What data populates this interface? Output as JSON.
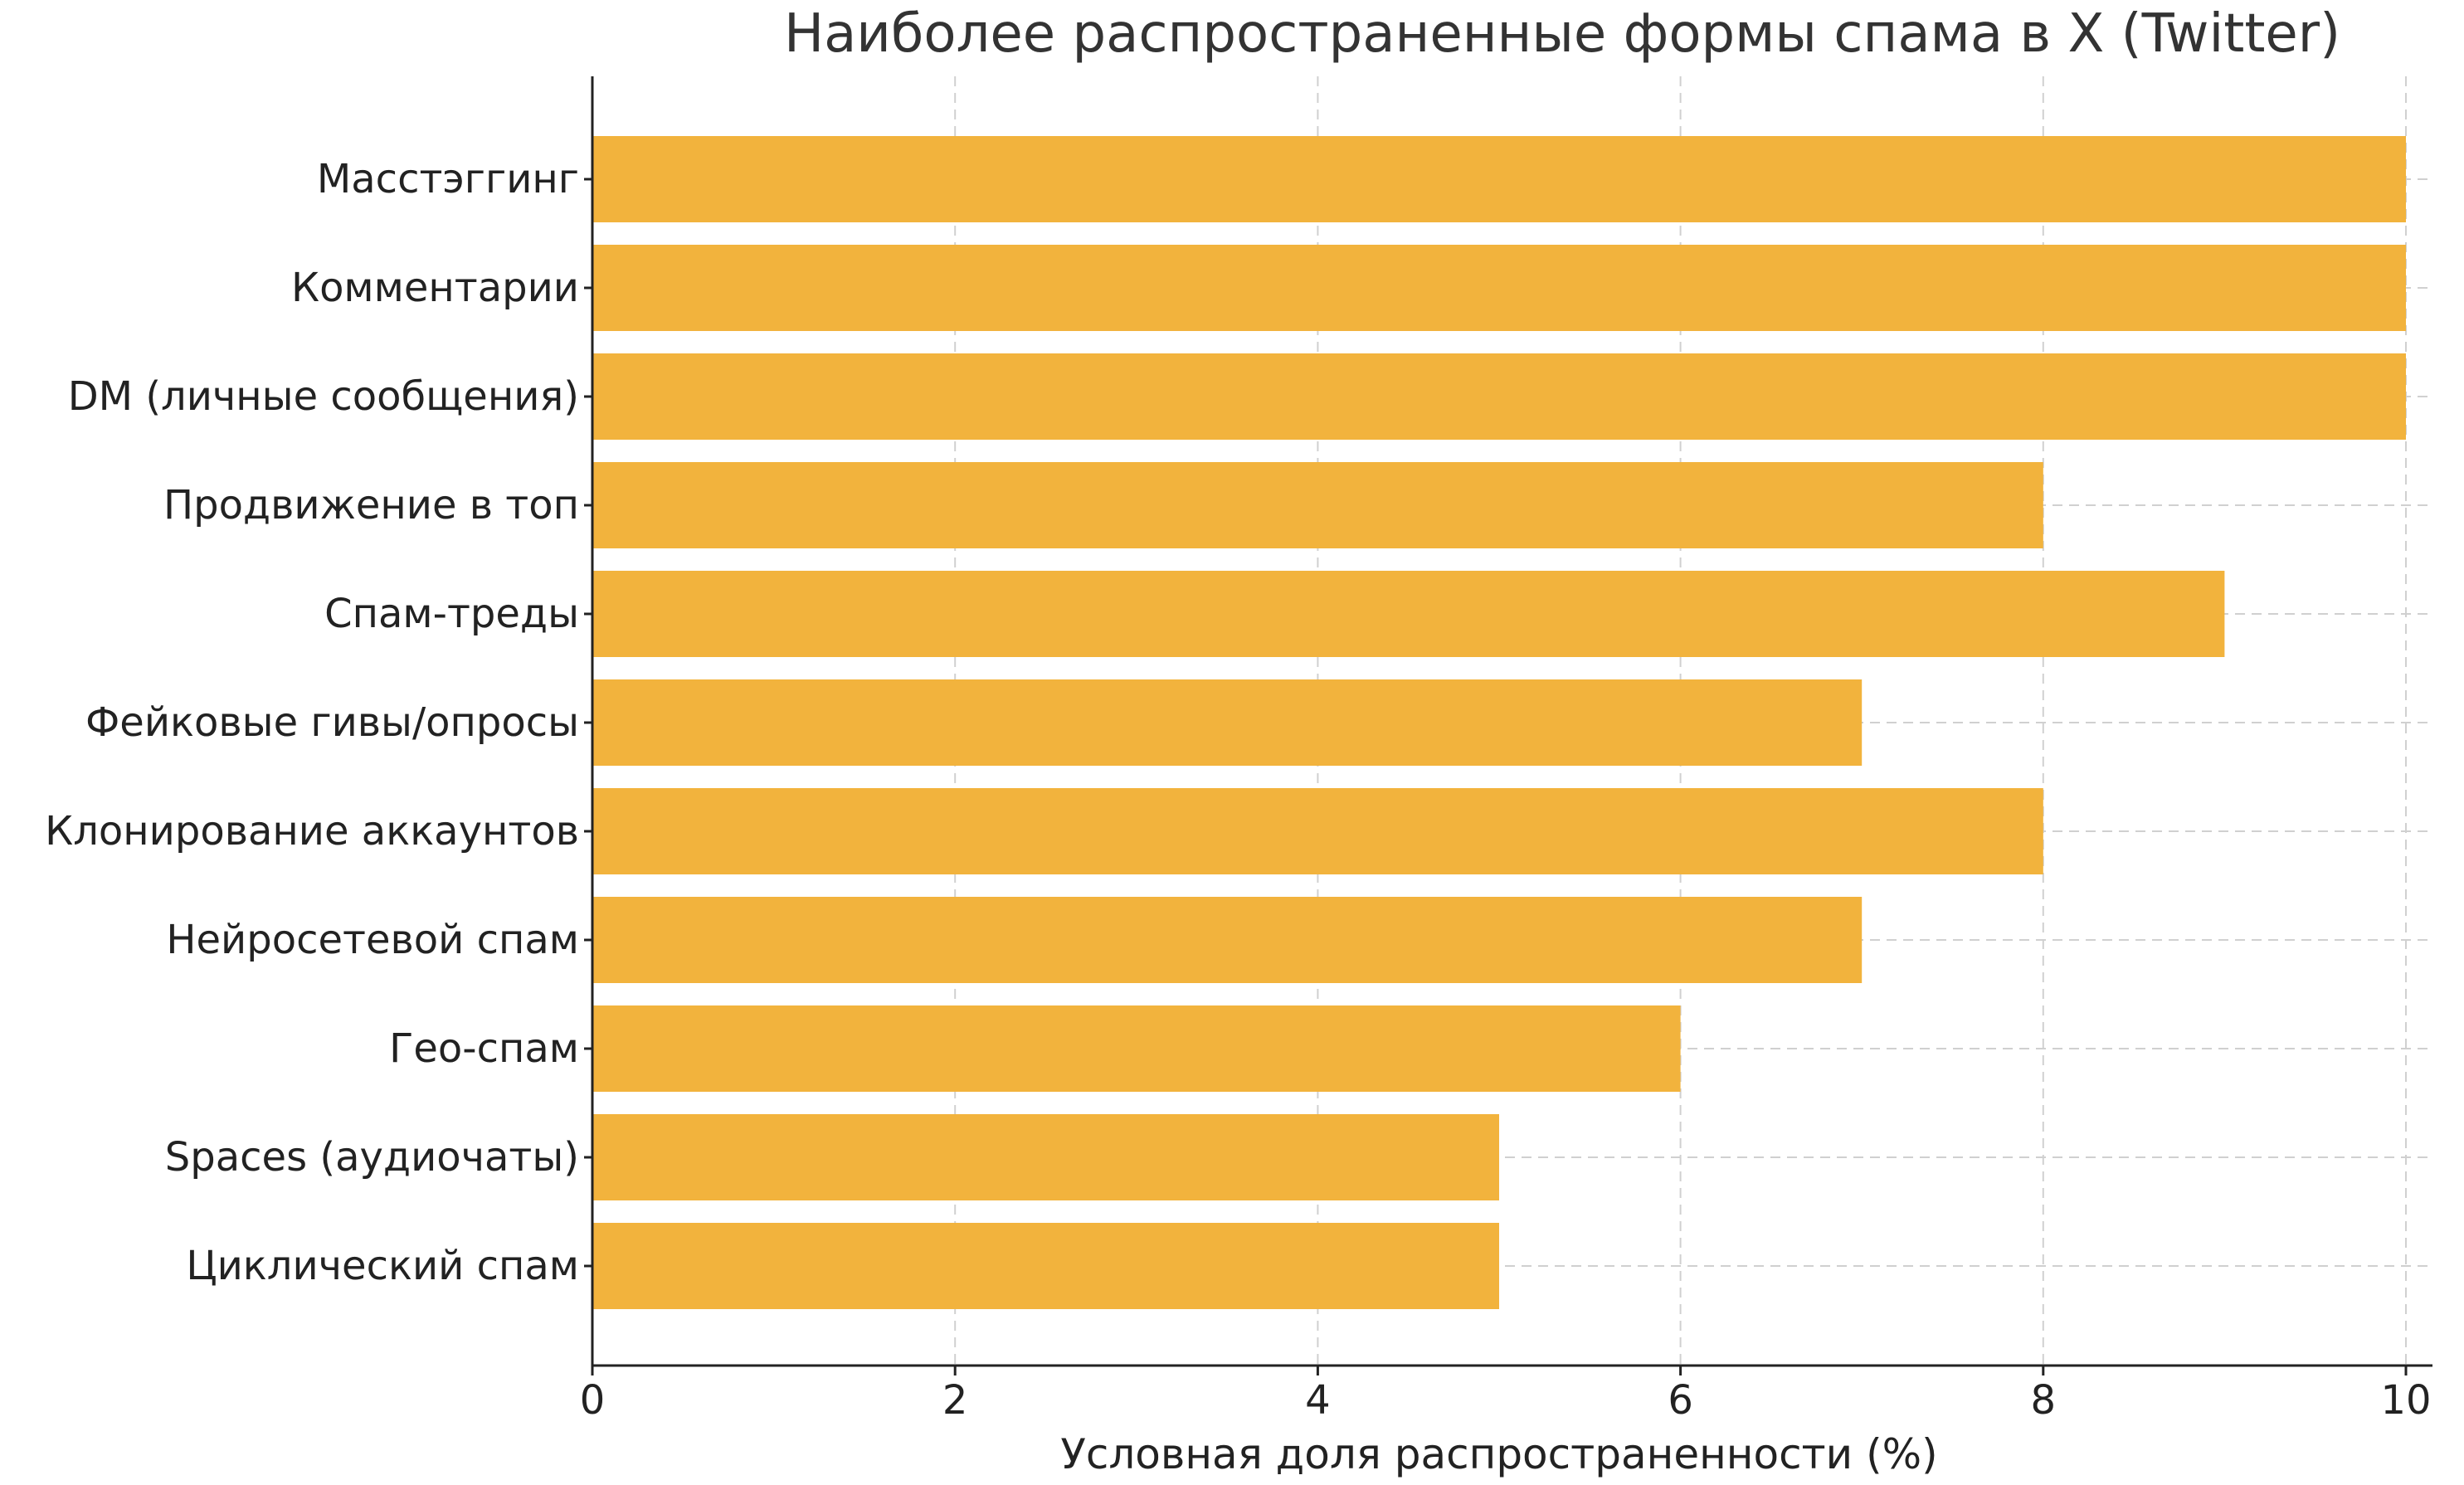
{
  "chart_data": {
    "type": "bar",
    "orientation": "horizontal",
    "title": "Наиболее распространенные формы спама в X (Twitter)",
    "xlabel": "Условная доля распространенности (%)",
    "ylabel": "",
    "xlim": [
      0,
      10
    ],
    "xticks": [
      0,
      2,
      4,
      6,
      8,
      10
    ],
    "grid": true,
    "categories": [
      "Масстэггинг",
      "Комментарии",
      "DM (личные сообщения)",
      "Продвижение в топ",
      "Спам-треды",
      "Фейковые гивы/опросы",
      "Клонирование аккаунтов",
      "Нейросетевой спам",
      "Гео-спам",
      "Spaces (аудиочаты)",
      "Циклический спам"
    ],
    "values": [
      10,
      10,
      10,
      8,
      9,
      7,
      8,
      7,
      6,
      5,
      5
    ],
    "bar_color": "#F2B33D"
  }
}
